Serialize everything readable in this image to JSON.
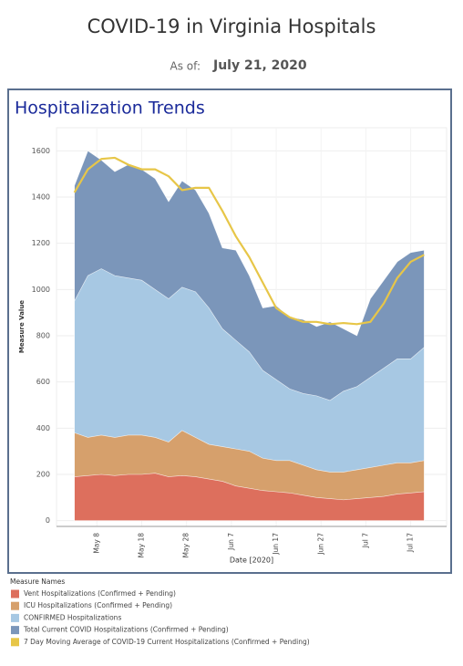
{
  "header": {
    "title": "COVID-19 in Virginia Hospitals",
    "as_of_label": "As of:",
    "as_of_date": "July 21, 2020"
  },
  "chart_data": {
    "type": "area",
    "title": "Hospitalization Trends",
    "x_label": "Date [2020]",
    "y_label": "Measure Value",
    "legend_title": "Measure Names",
    "legend_position": "bottom-left",
    "grid": true,
    "x": [
      "2020-05-03",
      "2020-05-06",
      "2020-05-09",
      "2020-05-12",
      "2020-05-15",
      "2020-05-18",
      "2020-05-21",
      "2020-05-24",
      "2020-05-27",
      "2020-05-30",
      "2020-06-02",
      "2020-06-05",
      "2020-06-08",
      "2020-06-11",
      "2020-06-14",
      "2020-06-17",
      "2020-06-20",
      "2020-06-23",
      "2020-06-26",
      "2020-06-29",
      "2020-07-02",
      "2020-07-05",
      "2020-07-08",
      "2020-07-11",
      "2020-07-14",
      "2020-07-17",
      "2020-07-20"
    ],
    "xlim": [
      "2020-04-29",
      "2020-07-25"
    ],
    "xticks": [
      {
        "value": "2020-05-08",
        "label": "May 8"
      },
      {
        "value": "2020-05-18",
        "label": "May 18"
      },
      {
        "value": "2020-05-28",
        "label": "May 28"
      },
      {
        "value": "2020-06-07",
        "label": "Jun 7"
      },
      {
        "value": "2020-06-17",
        "label": "Jun 17"
      },
      {
        "value": "2020-06-27",
        "label": "Jun 27"
      },
      {
        "value": "2020-07-07",
        "label": "Jul 7"
      },
      {
        "value": "2020-07-17",
        "label": "Jul 17"
      }
    ],
    "ylim": [
      -25,
      1700
    ],
    "yticks": [
      0,
      200,
      400,
      600,
      800,
      1000,
      1200,
      1400,
      1600
    ],
    "series": [
      {
        "name": "Vent Hospitalizations (Confirmed + Pending)",
        "color": "#dd6f5d",
        "type": "area",
        "values": [
          190,
          195,
          200,
          195,
          200,
          200,
          205,
          190,
          195,
          190,
          180,
          170,
          150,
          140,
          130,
          125,
          120,
          110,
          100,
          95,
          90,
          95,
          100,
          105,
          115,
          120,
          125
        ]
      },
      {
        "name": "ICU Hospitalizations (Confirmed + Pending)",
        "color": "#d6a06c",
        "type": "area",
        "values": [
          380,
          360,
          370,
          360,
          370,
          370,
          360,
          340,
          390,
          360,
          330,
          320,
          310,
          300,
          270,
          260,
          260,
          240,
          220,
          210,
          210,
          220,
          230,
          240,
          250,
          250,
          260
        ]
      },
      {
        "name": "CONFIRMED Hospitalizations",
        "color": "#a7c8e3",
        "type": "area",
        "values": [
          950,
          1060,
          1090,
          1060,
          1050,
          1040,
          1000,
          960,
          1010,
          990,
          920,
          830,
          780,
          730,
          650,
          610,
          570,
          550,
          540,
          520,
          560,
          580,
          620,
          660,
          700,
          700,
          750
        ]
      },
      {
        "name": "Total Current COVID Hospitalizations (Confirmed + Pending)",
        "color": "#7b96ba",
        "type": "area",
        "values": [
          1450,
          1600,
          1560,
          1510,
          1540,
          1520,
          1480,
          1380,
          1470,
          1430,
          1330,
          1180,
          1170,
          1060,
          920,
          930,
          880,
          870,
          840,
          860,
          830,
          800,
          960,
          1040,
          1120,
          1160,
          1170
        ]
      },
      {
        "name": "7 Day Moving Average of COVID-19 Current Hospitalizations (Confirmed + Pending)",
        "color": "#e7c648",
        "type": "line",
        "values": [
          1420,
          1520,
          1565,
          1570,
          1540,
          1520,
          1520,
          1490,
          1430,
          1440,
          1440,
          1340,
          1230,
          1140,
          1030,
          920,
          880,
          860,
          860,
          850,
          855,
          850,
          860,
          940,
          1050,
          1120,
          1150
        ]
      }
    ]
  }
}
